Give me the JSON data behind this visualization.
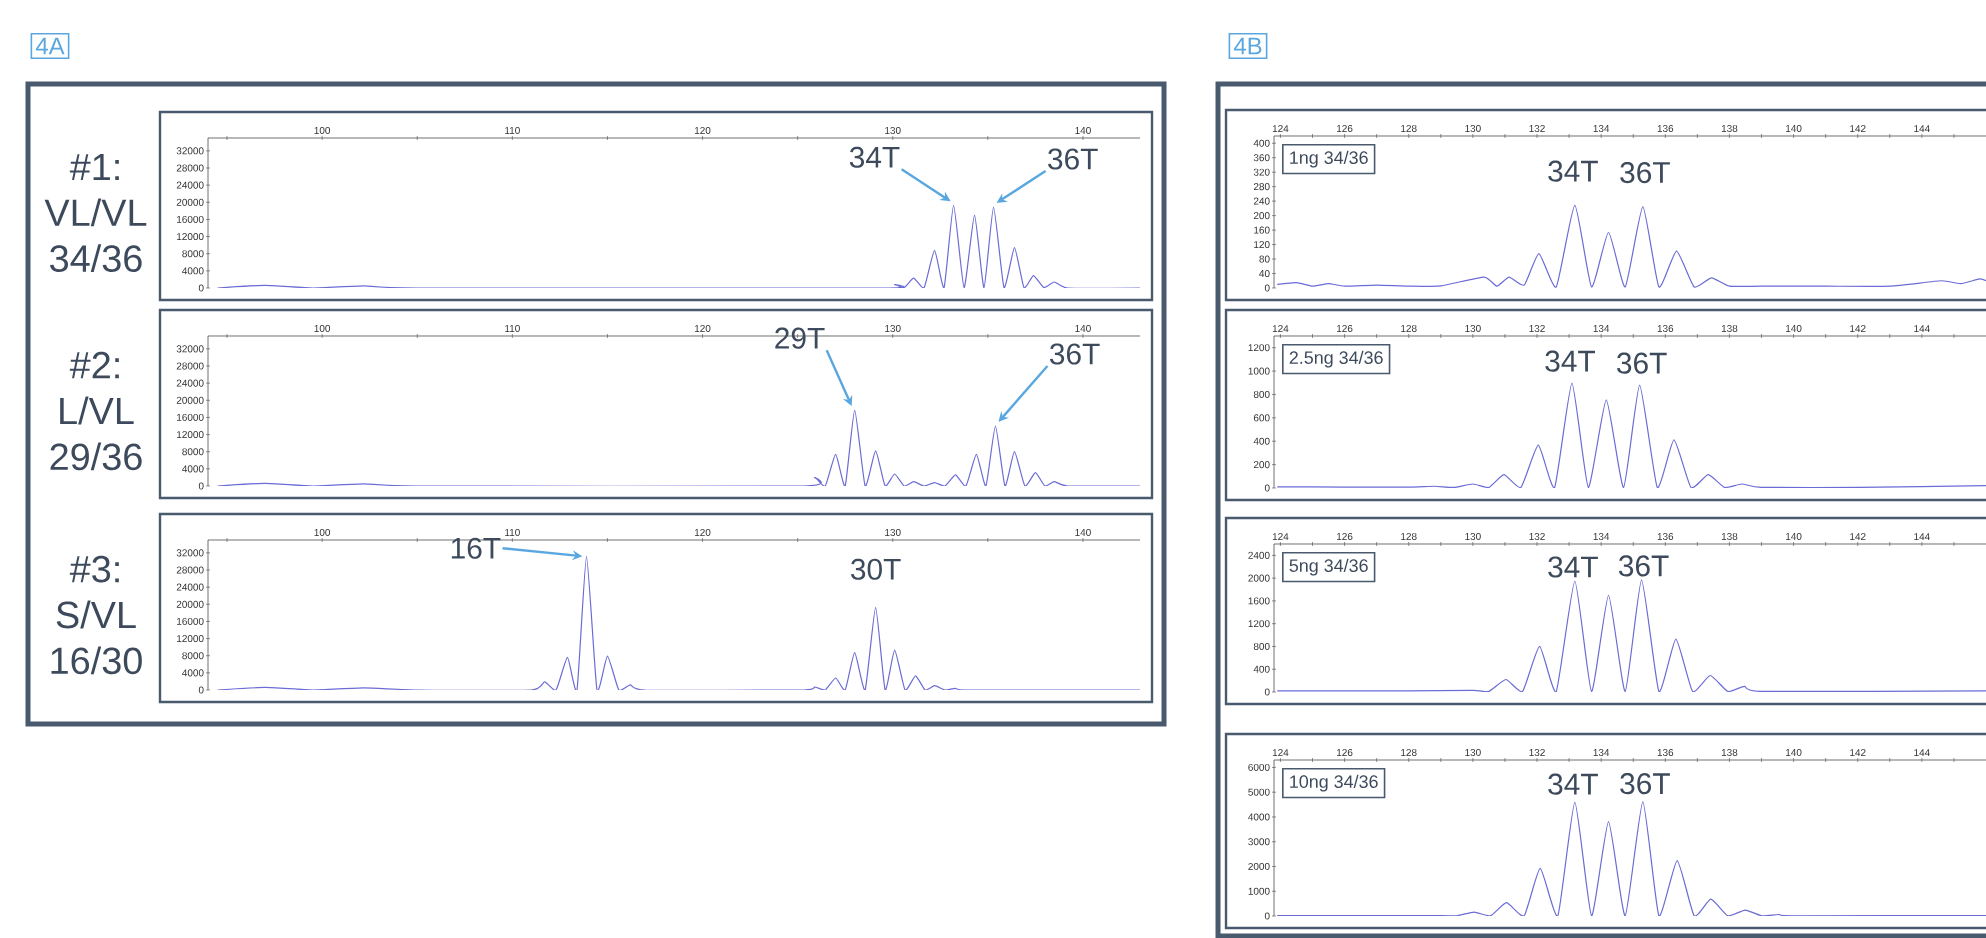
{
  "chart_data": [
    {
      "type": "line",
      "title": "#1: VL/VL 34/36",
      "color": "#6b6bd6",
      "xlim": [
        94,
        143
      ],
      "ylim": [
        0,
        35000
      ],
      "xticks": [
        {
          "value": 95,
          "label": null
        },
        100,
        {
          "value": 105,
          "label": null
        },
        110,
        {
          "value": 115,
          "label": null
        },
        120,
        {
          "value": 125,
          "label": null
        },
        130,
        {
          "value": 135,
          "label": null
        },
        140
      ],
      "yticks": [
        0,
        4000,
        8000,
        12000,
        16000,
        20000,
        24000,
        28000,
        32000
      ],
      "x": [
        94.5,
        97,
        99.5,
        102.2,
        105,
        129.5,
        130.1,
        130.6,
        131.1,
        131.65,
        132.2,
        132.7,
        133.2,
        133.75,
        134.3,
        134.8,
        135.3,
        135.85,
        136.4,
        136.9,
        137.4,
        137.95,
        138.5,
        139.2,
        143
      ],
      "values": [
        0,
        600,
        0,
        500,
        0,
        0,
        800,
        100,
        2300,
        100,
        8800,
        100,
        19300,
        100,
        17000,
        100,
        18900,
        100,
        9400,
        100,
        2900,
        100,
        1400,
        0,
        0
      ],
      "annotations": [
        "4A",
        {
          "text": "34T",
          "x": 133.2,
          "y": 19300
        },
        {
          "text": "36T",
          "x": 135.3,
          "y": 18900
        }
      ]
    },
    {
      "type": "line",
      "title": "#2: L/VL 29/36",
      "color": "#6b6bd6",
      "xlim": [
        94,
        143
      ],
      "ylim": [
        0,
        35000
      ],
      "xticks": [
        {
          "value": 95,
          "label": null
        },
        100,
        {
          "value": 105,
          "label": null
        },
        110,
        {
          "value": 115,
          "label": null
        },
        120,
        {
          "value": 125,
          "label": null
        },
        130,
        {
          "value": 135,
          "label": null
        },
        140
      ],
      "yticks": [
        0,
        4000,
        8000,
        12000,
        16000,
        20000,
        24000,
        28000,
        32000
      ],
      "x": [
        94.5,
        97,
        99.5,
        102.2,
        105,
        125.3,
        125.9,
        126.45,
        127.0,
        127.5,
        128.0,
        128.55,
        129.1,
        129.6,
        130.1,
        130.6,
        131.1,
        131.65,
        132.2,
        132.75,
        133.3,
        133.85,
        134.4,
        134.9,
        135.4,
        135.9,
        136.4,
        136.95,
        137.5,
        138.0,
        138.5,
        139.2,
        143
      ],
      "values": [
        0,
        600,
        0,
        500,
        0,
        0,
        2000,
        0,
        7400,
        0,
        17700,
        0,
        8200,
        0,
        2800,
        0,
        1000,
        0,
        800,
        0,
        2600,
        0,
        7400,
        0,
        14000,
        0,
        8000,
        0,
        3100,
        0,
        1000,
        0,
        0
      ],
      "annotations": [
        {
          "text": "29T",
          "x": 128.0,
          "y": 17700
        },
        {
          "text": "36T",
          "x": 135.4,
          "y": 14000
        }
      ]
    },
    {
      "type": "line",
      "title": "#3: S/VL 16/30",
      "color": "#6b6bd6",
      "xlim": [
        94,
        143
      ],
      "ylim": [
        0,
        35000
      ],
      "xticks": [
        {
          "value": 95,
          "label": null
        },
        100,
        {
          "value": 105,
          "label": null
        },
        110,
        {
          "value": 115,
          "label": null
        },
        120,
        {
          "value": 125,
          "label": null
        },
        130,
        {
          "value": 135,
          "label": null
        },
        140
      ],
      "yticks": [
        0,
        4000,
        8000,
        12000,
        16000,
        20000,
        24000,
        28000,
        32000
      ],
      "x": [
        94.5,
        97,
        99.5,
        102.2,
        105,
        111.0,
        111.7,
        112.3,
        112.9,
        113.4,
        113.9,
        114.45,
        115.0,
        115.6,
        116.2,
        117.0,
        125.3,
        125.9,
        126.45,
        127.0,
        127.5,
        128.0,
        128.55,
        129.1,
        129.6,
        130.1,
        130.65,
        131.2,
        131.7,
        132.2,
        132.75,
        133.3,
        134,
        143
      ],
      "values": [
        0,
        600,
        0,
        500,
        0,
        0,
        1900,
        0,
        7600,
        0,
        31200,
        0,
        7900,
        0,
        1200,
        0,
        0,
        700,
        0,
        2800,
        0,
        8700,
        0,
        19300,
        0,
        9300,
        0,
        3300,
        0,
        1000,
        0,
        400,
        0,
        0
      ],
      "annotations": [
        {
          "text": "16T",
          "x": 113.9,
          "y": 31200
        },
        {
          "text": "30T",
          "x": 129.1,
          "y": 19300
        }
      ]
    },
    {
      "type": "line",
      "title": "1ng 34/36",
      "color": "#6b6bd6",
      "xlim": [
        123.8,
        146
      ],
      "ylim": [
        0,
        420
      ],
      "xticks": [
        124,
        {
          "value": 125,
          "label": null
        },
        126,
        {
          "value": 127,
          "label": null
        },
        128,
        {
          "value": 129,
          "label": null
        },
        130,
        {
          "value": 131,
          "label": null
        },
        132,
        {
          "value": 133,
          "label": null
        },
        134,
        {
          "value": 135,
          "label": null
        },
        136,
        {
          "value": 137,
          "label": null
        },
        138,
        {
          "value": 139,
          "label": null
        },
        140,
        {
          "value": 141,
          "label": null
        },
        142,
        {
          "value": 143,
          "label": null
        },
        144,
        {
          "value": 145,
          "label": null
        }
      ],
      "yticks": [
        0,
        40,
        80,
        120,
        160,
        200,
        240,
        280,
        320,
        360,
        400
      ],
      "x": [
        123.9,
        124.5,
        125,
        125.5,
        126,
        127,
        128,
        129,
        130.35,
        130.75,
        131.13,
        131.6,
        132.06,
        132.6,
        133.18,
        133.7,
        134.23,
        134.75,
        135.3,
        135.8,
        136.35,
        136.9,
        137.44,
        138,
        139,
        141,
        143,
        144.6,
        145.2,
        145.8,
        146
      ],
      "values": [
        10,
        15,
        5,
        12,
        5,
        8,
        5,
        6,
        30,
        5,
        30,
        8,
        95,
        3,
        229,
        3,
        154,
        3,
        225,
        3,
        102,
        3,
        28,
        5,
        5,
        5,
        5,
        20,
        12,
        25,
        20
      ],
      "annotations": [
        "4B",
        {
          "text": "34T",
          "x": 133.18,
          "y": 229
        },
        {
          "text": "36T",
          "x": 135.3,
          "y": 225
        }
      ]
    },
    {
      "type": "line",
      "title": "2.5ng 34/36",
      "color": "#6b6bd6",
      "xlim": [
        123.8,
        146
      ],
      "ylim": [
        0,
        1300
      ],
      "xticks": [
        124,
        {
          "value": 125,
          "label": null
        },
        126,
        {
          "value": 127,
          "label": null
        },
        128,
        {
          "value": 129,
          "label": null
        },
        130,
        {
          "value": 131,
          "label": null
        },
        132,
        {
          "value": 133,
          "label": null
        },
        134,
        {
          "value": 135,
          "label": null
        },
        136,
        {
          "value": 137,
          "label": null
        },
        138,
        {
          "value": 139,
          "label": null
        },
        140,
        {
          "value": 141,
          "label": null
        },
        142,
        {
          "value": 143,
          "label": null
        },
        144,
        {
          "value": 145,
          "label": null
        }
      ],
      "yticks": [
        0,
        200,
        400,
        600,
        800,
        1000,
        1200
      ],
      "x": [
        123.9,
        126,
        128,
        128.8,
        129.4,
        130.0,
        130.5,
        130.97,
        131.5,
        132.04,
        132.55,
        133.09,
        133.6,
        134.16,
        134.7,
        135.2,
        135.75,
        136.27,
        136.8,
        137.34,
        137.85,
        138.39,
        139,
        142,
        146
      ],
      "values": [
        10,
        8,
        8,
        15,
        5,
        34,
        5,
        114,
        5,
        366,
        5,
        897,
        5,
        754,
        5,
        880,
        5,
        411,
        5,
        114,
        5,
        34,
        5,
        5,
        20
      ],
      "annotations": [
        {
          "text": "34T",
          "x": 133.09,
          "y": 897
        },
        {
          "text": "36T",
          "x": 135.2,
          "y": 880
        }
      ]
    },
    {
      "type": "line",
      "title": "5ng 34/36",
      "color": "#6b6bd6",
      "xlim": [
        123.8,
        146
      ],
      "ylim": [
        0,
        2600
      ],
      "xticks": [
        124,
        {
          "value": 125,
          "label": null
        },
        126,
        {
          "value": 127,
          "label": null
        },
        128,
        {
          "value": 129,
          "label": null
        },
        130,
        {
          "value": 131,
          "label": null
        },
        132,
        {
          "value": 133,
          "label": null
        },
        134,
        {
          "value": 135,
          "label": null
        },
        136,
        {
          "value": 137,
          "label": null
        },
        138,
        {
          "value": 139,
          "label": null
        },
        140,
        {
          "value": 141,
          "label": null
        },
        142,
        {
          "value": 143,
          "label": null
        },
        144,
        {
          "value": 145,
          "label": null
        }
      ],
      "yticks": [
        0,
        400,
        800,
        1200,
        1600,
        2000,
        2400
      ],
      "x": [
        123.9,
        128,
        130,
        130.5,
        131.03,
        131.55,
        132.08,
        132.6,
        133.18,
        133.7,
        134.23,
        134.75,
        135.26,
        135.8,
        136.33,
        136.85,
        137.4,
        137.95,
        138.47,
        139,
        146
      ],
      "values": [
        20,
        20,
        30,
        10,
        220,
        10,
        800,
        10,
        1950,
        10,
        1700,
        10,
        1970,
        10,
        930,
        10,
        290,
        10,
        100,
        10,
        20
      ],
      "annotations": [
        {
          "text": "34T",
          "x": 133.18,
          "y": 1950
        },
        {
          "text": "36T",
          "x": 135.26,
          "y": 1970
        }
      ]
    },
    {
      "type": "line",
      "title": "10ng 34/36",
      "color": "#6b6bd6",
      "xlim": [
        123.8,
        146
      ],
      "ylim": [
        0,
        6300
      ],
      "xticks": [
        124,
        {
          "value": 125,
          "label": null
        },
        126,
        {
          "value": 127,
          "label": null
        },
        128,
        {
          "value": 129,
          "label": null
        },
        130,
        {
          "value": 131,
          "label": null
        },
        132,
        {
          "value": 133,
          "label": null
        },
        134,
        {
          "value": 135,
          "label": null
        },
        136,
        {
          "value": 137,
          "label": null
        },
        138,
        {
          "value": 139,
          "label": null
        },
        140,
        {
          "value": 141,
          "label": null
        },
        142,
        {
          "value": 143,
          "label": null
        },
        144,
        {
          "value": 145,
          "label": null
        }
      ],
      "yticks": [
        0,
        1000,
        2000,
        3000,
        4000,
        5000,
        6000
      ],
      "x": [
        123.9,
        129,
        129.5,
        130.04,
        130.55,
        131.05,
        131.6,
        132.1,
        132.65,
        133.18,
        133.7,
        134.23,
        134.75,
        135.3,
        135.8,
        136.37,
        136.9,
        137.42,
        137.95,
        138.49,
        139,
        139.53,
        140,
        146
      ],
      "values": [
        20,
        20,
        10,
        160,
        10,
        540,
        10,
        1920,
        10,
        4600,
        10,
        3810,
        10,
        4620,
        10,
        2240,
        10,
        680,
        10,
        240,
        10,
        60,
        10,
        20
      ],
      "annotations": [
        {
          "text": "34T",
          "x": 133.18,
          "y": 4600
        },
        {
          "text": "36T",
          "x": 135.3,
          "y": 4620
        }
      ]
    }
  ]
}
